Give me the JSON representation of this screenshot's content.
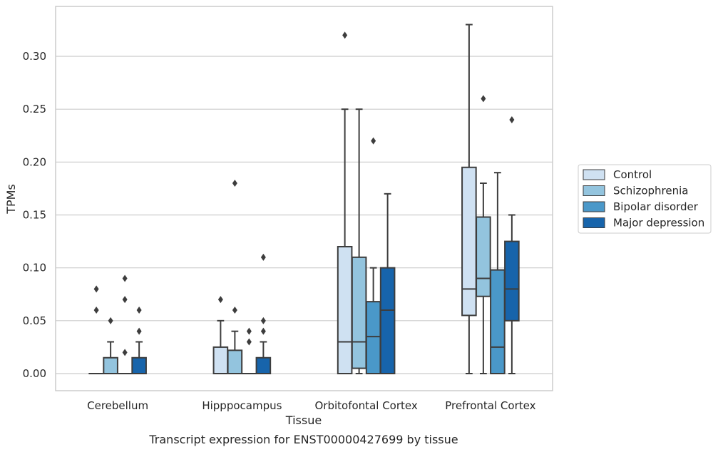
{
  "chart_data": {
    "type": "box",
    "title": "Transcript expression for ENST00000427699 by tissue",
    "xlabel": "Tissue",
    "ylabel": "TPMs",
    "ylim": [
      -0.016,
      0.345
    ],
    "yticks": [
      "0.00",
      "0.05",
      "0.10",
      "0.15",
      "0.20",
      "0.25",
      "0.30"
    ],
    "grid": true,
    "legend_position": "right",
    "categories": [
      "Cerebellum",
      "Hipppocampus",
      "Orbitofontal Cortex",
      "Prefrontal Cortex"
    ],
    "series": [
      {
        "name": "Control",
        "color": "#cfe1f2",
        "boxes": [
          {
            "whislo": 0,
            "q1": 0,
            "med": 0,
            "q3": 0,
            "whishi": 0,
            "fliers": [
              0.06,
              0.08
            ]
          },
          {
            "whislo": 0,
            "q1": 0,
            "med": 0,
            "q3": 0.025,
            "whishi": 0.05,
            "fliers": [
              0.07
            ]
          },
          {
            "whislo": 0,
            "q1": 0,
            "med": 0.03,
            "q3": 0.12,
            "whishi": 0.25,
            "fliers": [
              0.32
            ]
          },
          {
            "whislo": 0,
            "q1": 0.055,
            "med": 0.08,
            "q3": 0.195,
            "whishi": 0.33,
            "fliers": []
          }
        ]
      },
      {
        "name": "Schizophrenia",
        "color": "#93c4de",
        "boxes": [
          {
            "whislo": 0,
            "q1": 0,
            "med": 0,
            "q3": 0.015,
            "whishi": 0.03,
            "fliers": [
              0.05
            ]
          },
          {
            "whislo": 0,
            "q1": 0,
            "med": 0,
            "q3": 0.022,
            "whishi": 0.04,
            "fliers": [
              0.06,
              0.18
            ]
          },
          {
            "whislo": 0,
            "q1": 0.005,
            "med": 0.03,
            "q3": 0.11,
            "whishi": 0.25,
            "fliers": []
          },
          {
            "whislo": 0,
            "q1": 0.073,
            "med": 0.09,
            "q3": 0.148,
            "whishi": 0.18,
            "fliers": [
              0.26
            ]
          }
        ]
      },
      {
        "name": "Bipolar disorder",
        "color": "#4a98c9",
        "boxes": [
          {
            "whislo": 0,
            "q1": 0,
            "med": 0,
            "q3": 0,
            "whishi": 0,
            "fliers": [
              0.02,
              0.07,
              0.09
            ]
          },
          {
            "whislo": 0,
            "q1": 0,
            "med": 0,
            "q3": 0,
            "whishi": 0,
            "fliers": [
              0.03,
              0.04
            ]
          },
          {
            "whislo": 0,
            "q1": 0,
            "med": 0.035,
            "q3": 0.068,
            "whishi": 0.1,
            "fliers": [
              0.22
            ]
          },
          {
            "whislo": 0,
            "q1": 0,
            "med": 0.025,
            "q3": 0.098,
            "whishi": 0.19,
            "fliers": []
          }
        ]
      },
      {
        "name": "Major depression",
        "color": "#1764ab",
        "boxes": [
          {
            "whislo": 0,
            "q1": 0,
            "med": 0,
            "q3": 0.015,
            "whishi": 0.03,
            "fliers": [
              0.04,
              0.06
            ]
          },
          {
            "whislo": 0,
            "q1": 0,
            "med": 0,
            "q3": 0.015,
            "whishi": 0.03,
            "fliers": [
              0.04,
              0.05,
              0.11
            ]
          },
          {
            "whislo": 0,
            "q1": 0,
            "med": 0.06,
            "q3": 0.1,
            "whishi": 0.17,
            "fliers": []
          },
          {
            "whislo": 0,
            "q1": 0.05,
            "med": 0.08,
            "q3": 0.125,
            "whishi": 0.15,
            "fliers": [
              0.24
            ]
          }
        ]
      }
    ]
  }
}
